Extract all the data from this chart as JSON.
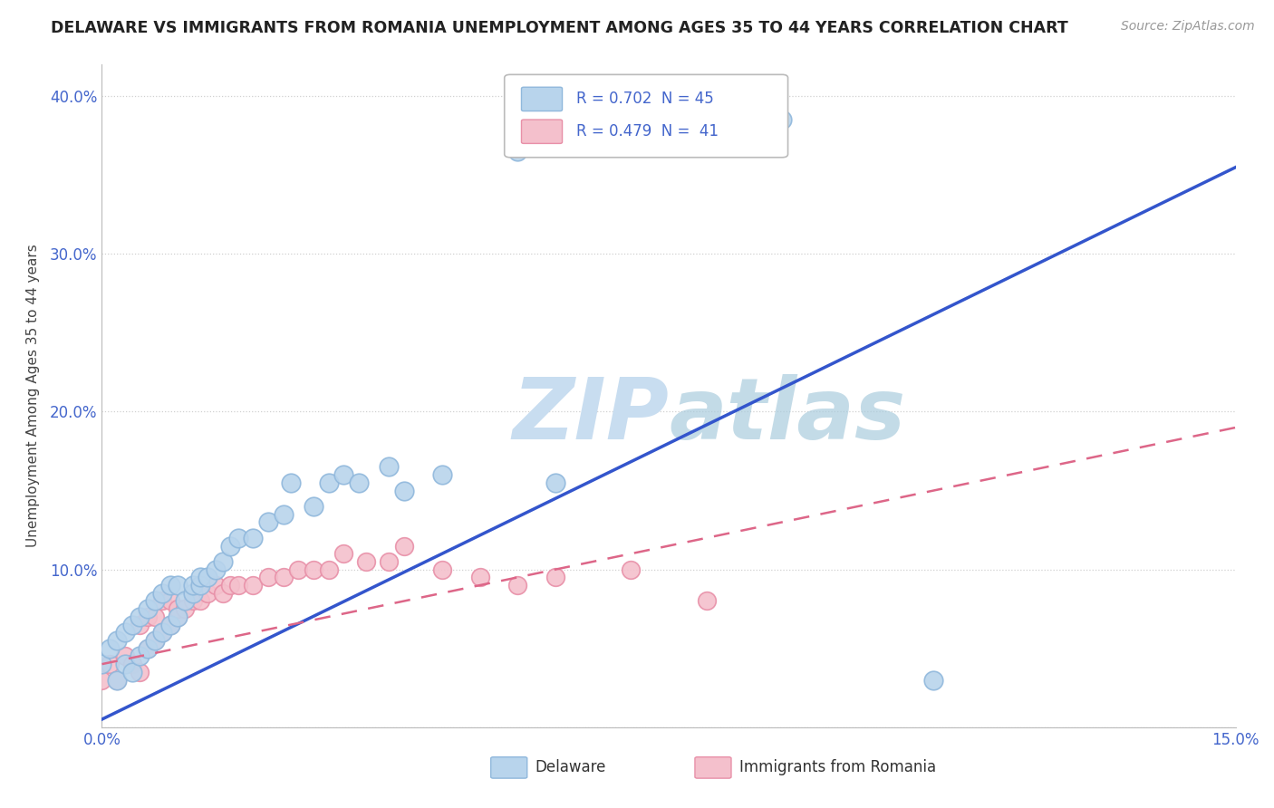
{
  "title": "DELAWARE VS IMMIGRANTS FROM ROMANIA UNEMPLOYMENT AMONG AGES 35 TO 44 YEARS CORRELATION CHART",
  "source": "Source: ZipAtlas.com",
  "ylabel": "Unemployment Among Ages 35 to 44 years",
  "xlim": [
    0.0,
    0.15
  ],
  "ylim": [
    0.0,
    0.42
  ],
  "xticks": [
    0.0,
    0.015,
    0.03,
    0.045,
    0.06,
    0.075,
    0.09,
    0.105,
    0.12,
    0.135,
    0.15
  ],
  "yticks": [
    0.0,
    0.1,
    0.2,
    0.3,
    0.4
  ],
  "ytick_labels": [
    "",
    "10.0%",
    "20.0%",
    "30.0%",
    "40.0%"
  ],
  "grid_color": "#d0d0d0",
  "background_color": "#ffffff",
  "delaware_color": "#b8d4ec",
  "delaware_edge_color": "#90b8dc",
  "romania_color": "#f4c0cc",
  "romania_edge_color": "#e890a8",
  "delaware_R": 0.702,
  "delaware_N": 45,
  "romania_R": 0.479,
  "romania_N": 41,
  "delaware_line_color": "#3355cc",
  "romania_line_color": "#dd6688",
  "watermark_color": "#c8ddf0",
  "tick_color": "#4466cc",
  "del_line_x": [
    0.0,
    0.15
  ],
  "del_line_y": [
    0.005,
    0.355
  ],
  "rom_line_x": [
    0.0,
    0.15
  ],
  "rom_line_y": [
    0.04,
    0.19
  ],
  "delaware_scatter_x": [
    0.0,
    0.001,
    0.002,
    0.002,
    0.003,
    0.003,
    0.004,
    0.004,
    0.005,
    0.005,
    0.006,
    0.006,
    0.007,
    0.007,
    0.008,
    0.008,
    0.009,
    0.009,
    0.01,
    0.01,
    0.011,
    0.012,
    0.012,
    0.013,
    0.013,
    0.014,
    0.015,
    0.016,
    0.017,
    0.018,
    0.02,
    0.022,
    0.024,
    0.025,
    0.028,
    0.03,
    0.032,
    0.034,
    0.038,
    0.04,
    0.045,
    0.055,
    0.06,
    0.09,
    0.11
  ],
  "delaware_scatter_y": [
    0.04,
    0.05,
    0.03,
    0.055,
    0.04,
    0.06,
    0.035,
    0.065,
    0.045,
    0.07,
    0.05,
    0.075,
    0.055,
    0.08,
    0.06,
    0.085,
    0.065,
    0.09,
    0.07,
    0.09,
    0.08,
    0.085,
    0.09,
    0.09,
    0.095,
    0.095,
    0.1,
    0.105,
    0.115,
    0.12,
    0.12,
    0.13,
    0.135,
    0.155,
    0.14,
    0.155,
    0.16,
    0.155,
    0.165,
    0.15,
    0.16,
    0.365,
    0.155,
    0.385,
    0.03
  ],
  "romania_scatter_x": [
    0.0,
    0.001,
    0.002,
    0.003,
    0.004,
    0.005,
    0.005,
    0.006,
    0.006,
    0.007,
    0.007,
    0.008,
    0.008,
    0.009,
    0.009,
    0.01,
    0.01,
    0.011,
    0.012,
    0.013,
    0.014,
    0.015,
    0.016,
    0.017,
    0.018,
    0.02,
    0.022,
    0.024,
    0.026,
    0.028,
    0.03,
    0.032,
    0.035,
    0.038,
    0.04,
    0.045,
    0.05,
    0.055,
    0.06,
    0.07,
    0.08
  ],
  "romania_scatter_y": [
    0.03,
    0.04,
    0.03,
    0.045,
    0.04,
    0.035,
    0.065,
    0.05,
    0.07,
    0.055,
    0.07,
    0.06,
    0.08,
    0.065,
    0.08,
    0.07,
    0.075,
    0.075,
    0.08,
    0.08,
    0.085,
    0.09,
    0.085,
    0.09,
    0.09,
    0.09,
    0.095,
    0.095,
    0.1,
    0.1,
    0.1,
    0.11,
    0.105,
    0.105,
    0.115,
    0.1,
    0.095,
    0.09,
    0.095,
    0.1,
    0.08
  ]
}
